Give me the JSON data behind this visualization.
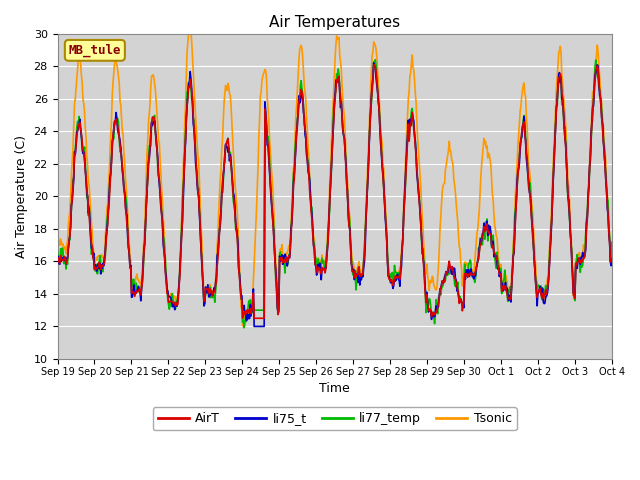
{
  "title": "Air Temperatures",
  "ylabel": "Air Temperature (C)",
  "xlabel": "Time",
  "ylim": [
    10,
    30
  ],
  "background_color": "#d3d3d3",
  "axes_facecolor": "#d3d3d3",
  "figure_facecolor": "#ffffff",
  "grid_color": "#ffffff",
  "site_label": "MB_tule",
  "site_label_color": "#8b0000",
  "site_label_bg": "#ffff99",
  "series": [
    "AirT",
    "li75_t",
    "li77_temp",
    "Tsonic"
  ],
  "colors": [
    "#dd0000",
    "#0000cc",
    "#00bb00",
    "#ff9900"
  ],
  "linewidths": [
    1.2,
    1.2,
    1.2,
    1.2
  ],
  "tick_labels": [
    "Sep 19",
    "Sep 20",
    "Sep 21",
    "Sep 22",
    "Sep 23",
    "Sep 24",
    "Sep 25",
    "Sep 26",
    "Sep 27",
    "Sep 28",
    "Sep 29",
    "Sep 30",
    "Oct 1",
    "Oct 2",
    "Oct 3",
    "Oct 4"
  ],
  "tick_positions": [
    0,
    1,
    2,
    3,
    4,
    5,
    6,
    7,
    8,
    9,
    10,
    11,
    12,
    13,
    14,
    15
  ],
  "yticks": [
    10,
    12,
    14,
    16,
    18,
    20,
    22,
    24,
    26,
    28,
    30
  ],
  "num_points_per_day": 48,
  "num_days": 15,
  "seed": 12345
}
